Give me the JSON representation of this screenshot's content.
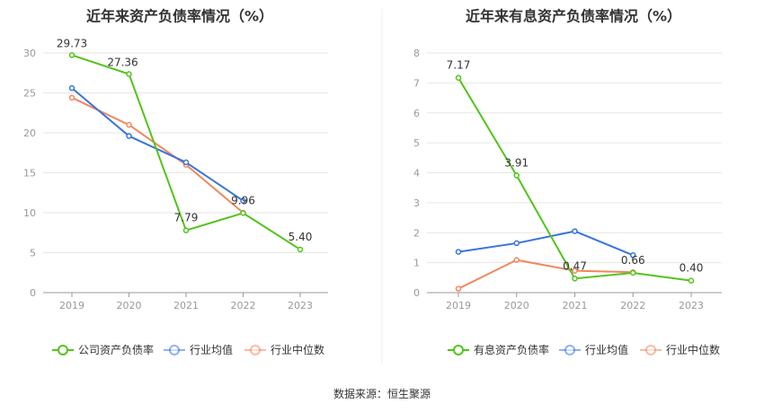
{
  "chart_data": [
    {
      "type": "line",
      "title": "近年来资产负债率情况（%）",
      "categories": [
        "2019",
        "2020",
        "2021",
        "2022",
        "2023"
      ],
      "ylim": [
        0,
        30
      ],
      "yticks": [
        "0",
        "5",
        "10",
        "15",
        "20",
        "25",
        "30"
      ],
      "grid": true,
      "legend_position": "bottom",
      "series": [
        {
          "name": "公司资产负债率",
          "color": "#52c41a",
          "values": [
            29.73,
            27.36,
            7.79,
            9.96,
            5.4
          ],
          "labels": [
            "29.73",
            "27.36",
            "7.79",
            "9.96",
            "5.40"
          ]
        },
        {
          "name": "行业均值",
          "color": "#3a74d9",
          "values": [
            25.6,
            19.6,
            16.3,
            11.5,
            null
          ]
        },
        {
          "name": "行业中位数",
          "color": "#f0875e",
          "values": [
            24.4,
            21.0,
            16.0,
            10.0,
            null
          ]
        }
      ]
    },
    {
      "type": "line",
      "title": "近年来有息资产负债率情况（%）",
      "categories": [
        "2019",
        "2020",
        "2021",
        "2022",
        "2023"
      ],
      "ylim": [
        0,
        8
      ],
      "yticks": [
        "0",
        "1",
        "2",
        "3",
        "4",
        "5",
        "6",
        "7",
        "8"
      ],
      "grid": true,
      "legend_position": "bottom",
      "series": [
        {
          "name": "有息资产负债率",
          "color": "#52c41a",
          "values": [
            7.17,
            3.91,
            0.47,
            0.66,
            0.4
          ],
          "labels": [
            "7.17",
            "3.91",
            "0.47",
            "0.66",
            "0.40"
          ]
        },
        {
          "name": "行业均值",
          "color": "#3a74d9",
          "values": [
            1.36,
            1.65,
            2.05,
            1.25,
            null
          ]
        },
        {
          "name": "行业中位数",
          "color": "#f0875e",
          "values": [
            0.13,
            1.09,
            0.73,
            0.68,
            null
          ]
        }
      ]
    }
  ],
  "source": "数据来源：恒生聚源"
}
